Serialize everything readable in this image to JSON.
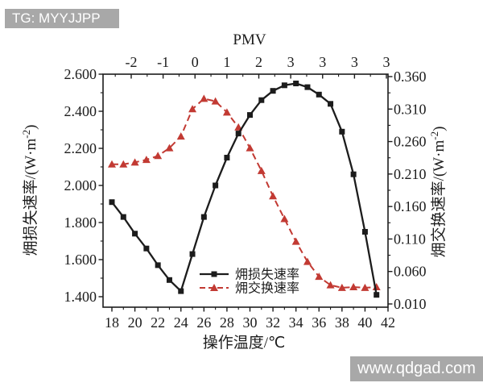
{
  "watermarks": {
    "top_left": "TG: MYYJJPP",
    "bottom_right": "www.qdgad.com"
  },
  "colors": {
    "badge_bg": "#a8a8a8",
    "badge_text": "#ffffff",
    "axis": "#1c1c1c",
    "series_loss": "#1c1c1c",
    "series_exchange": "#c23a33"
  },
  "chart_data": {
    "type": "line",
    "top_axis": {
      "label": "PMV",
      "tick_labels": [
        "-2",
        "-1",
        "0",
        "1",
        "2",
        "3",
        "3",
        "3",
        "3"
      ]
    },
    "bottom_axis": {
      "label": "操作温度/℃",
      "major_ticks": [
        18,
        20,
        22,
        24,
        26,
        28,
        30,
        32,
        34,
        36,
        38,
        40,
        42
      ],
      "minor_ticks": [
        19,
        21,
        23,
        25,
        27,
        29,
        31,
        33,
        35,
        37,
        39,
        41
      ],
      "range": [
        17.2,
        42
      ]
    },
    "left_axis": {
      "label": "㶲损失速率/(W·m⁻²)",
      "tick_labels": [
        "1.400",
        "1.600",
        "1.800",
        "2.000",
        "2.200",
        "2.400",
        "2.600"
      ],
      "min": 1.4,
      "max": 2.6,
      "tick_step": 0.2,
      "minor_step": 0.1
    },
    "right_axis": {
      "label": "㶲交换速率/(W·m⁻²)",
      "tick_labels": [
        "0.010",
        "0.060",
        "0.110",
        "0.160",
        "0.210",
        "0.260",
        "0.310",
        "0.360"
      ],
      "min": 0.01,
      "max": 0.36,
      "tick_step": 0.05,
      "minor_step": 0.025
    },
    "x": [
      18,
      19,
      20,
      21,
      22,
      23,
      24,
      25,
      26,
      27,
      28,
      29,
      30,
      31,
      32,
      33,
      34,
      35,
      36,
      37,
      38,
      39,
      40,
      41
    ],
    "series": [
      {
        "name": "㶲损失速率",
        "axis": "left",
        "marker": "square",
        "line_style": "solid",
        "color": "#1c1c1c",
        "values": [
          1.91,
          1.83,
          1.74,
          1.66,
          1.57,
          1.49,
          1.43,
          1.63,
          1.83,
          2.0,
          2.15,
          2.28,
          2.38,
          2.46,
          2.51,
          2.54,
          2.55,
          2.53,
          2.49,
          2.44,
          2.29,
          2.06,
          1.75,
          1.41
        ]
      },
      {
        "name": "㶲交换速率",
        "axis": "right",
        "marker": "triangle",
        "line_style": "dashed",
        "color": "#c23a33",
        "values": [
          0.225,
          0.225,
          0.228,
          0.232,
          0.238,
          0.25,
          0.268,
          0.31,
          0.326,
          0.322,
          0.305,
          0.282,
          0.25,
          0.215,
          0.176,
          0.141,
          0.106,
          0.075,
          0.052,
          0.039,
          0.035,
          0.036,
          0.035,
          0.036
        ]
      }
    ],
    "legend": {
      "position": "inside-bottom",
      "entries": [
        "㶲损失速率",
        "㶲交换速率"
      ]
    },
    "grid": false
  }
}
